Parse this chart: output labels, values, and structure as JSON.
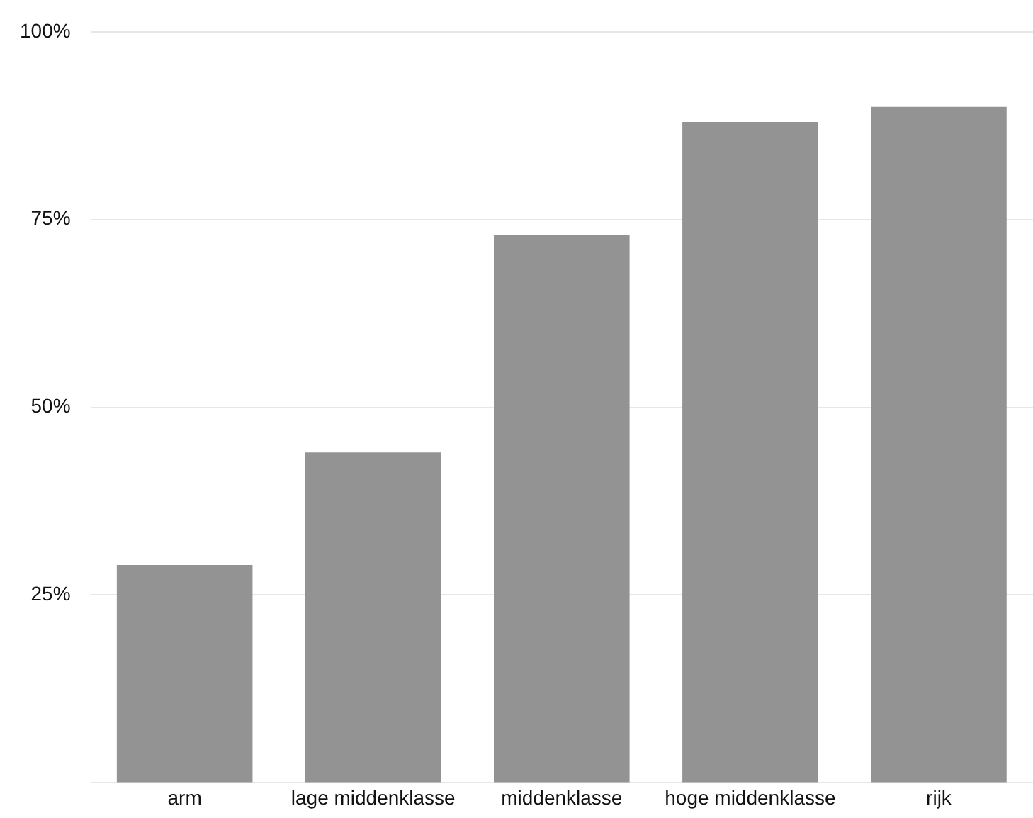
{
  "chart_data": {
    "type": "bar",
    "categories": [
      "arm",
      "lage middenklasse",
      "middenklasse",
      "hoge middenklasse",
      "rijk"
    ],
    "values": [
      29,
      44,
      73,
      88,
      90
    ],
    "color": "#939393",
    "ylim": [
      0,
      100
    ],
    "yticks": [
      {
        "value": 0,
        "label": null
      },
      {
        "value": 25,
        "label": "25%"
      },
      {
        "value": 50,
        "label": "50%"
      },
      {
        "value": 75,
        "label": "75%"
      },
      {
        "value": 100,
        "label": "100%"
      }
    ],
    "grid": "y"
  }
}
